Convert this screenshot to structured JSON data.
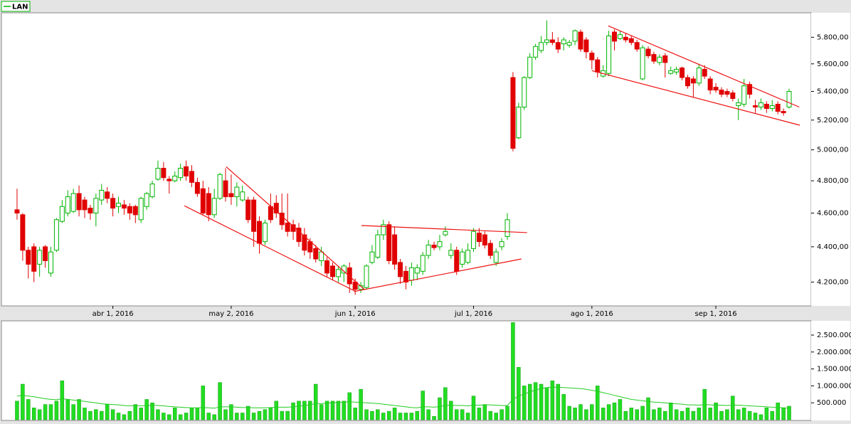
{
  "chart_data": {
    "type": "candlestick",
    "log_scale": true,
    "categories": [
      null,
      null,
      null,
      null,
      null,
      null,
      null,
      null,
      null,
      null,
      null,
      null,
      null,
      null,
      null,
      null,
      null,
      "abr 1, 2016",
      null,
      null,
      null,
      null,
      null,
      null,
      null,
      null,
      null,
      null,
      null,
      null,
      null,
      null,
      null,
      null,
      null,
      null,
      null,
      null,
      "may 2, 2016",
      null,
      null,
      null,
      null,
      null,
      null,
      null,
      null,
      null,
      null,
      null,
      null,
      null,
      null,
      null,
      null,
      null,
      null,
      null,
      null,
      null,
      "jun 1, 2016",
      null,
      null,
      null,
      null,
      null,
      null,
      null,
      null,
      null,
      null,
      null,
      null,
      null,
      null,
      null,
      null,
      null,
      null,
      null,
      null,
      "jul 1, 2016",
      null,
      null,
      null,
      null,
      null,
      null,
      null,
      null,
      null,
      null,
      null,
      null,
      null,
      null,
      null,
      null,
      null,
      null,
      null,
      null,
      "ago 1, 2016",
      null,
      null,
      null,
      null,
      null,
      null,
      null,
      null,
      null,
      null,
      null,
      null,
      null,
      null,
      null,
      null,
      null,
      null,
      null,
      null,
      null,
      "sep 1, 2016",
      null,
      null,
      null,
      null,
      null,
      null,
      null,
      null,
      null,
      null,
      null,
      null,
      null
    ],
    "series": [
      {
        "name": "LAN",
        "color": "#00b400",
        "down_color": "#e00000",
        "open": [
          4620,
          4590,
          4380,
          4400,
          4300,
          4400,
          4250,
          4380,
          4550,
          4600,
          4610,
          4720,
          4680,
          4630,
          4600,
          4680,
          4730,
          4690,
          4640,
          4650,
          4640,
          4640,
          4560,
          4640,
          4700,
          4810,
          4880,
          4810,
          4800,
          4820,
          4890,
          4860,
          4790,
          4750,
          4720,
          4590,
          4690,
          4800,
          4720,
          4700,
          4680,
          4680,
          4680,
          4550,
          4430,
          4640,
          4660,
          4600,
          4540,
          4530,
          4510,
          4470,
          4430,
          4390,
          4320,
          4320,
          4290,
          4230,
          4250,
          4280,
          4200,
          4160,
          4170,
          4310,
          4340,
          4470,
          4530,
          4470,
          4310,
          4260,
          4210,
          4250,
          4260,
          4350,
          4410,
          4400,
          4470,
          4350,
          4380,
          4300,
          4310,
          4390,
          4480,
          4470,
          4420,
          4310,
          4400,
          4460,
          5500,
          5080,
          5290,
          5500,
          5650,
          5700,
          5760,
          5780,
          5760,
          5750,
          5740,
          5770,
          5840,
          5780,
          5680,
          5630,
          5510,
          5530,
          5840,
          5790,
          5800,
          5790,
          5760,
          5490,
          5710,
          5670,
          5610,
          5660,
          5530,
          5540,
          5570,
          5500,
          5490,
          5460,
          5560,
          5490,
          5430,
          5410,
          5400,
          5390,
          5300,
          5310,
          5450,
          5300,
          5290,
          5310,
          5280,
          5310,
          5260,
          5290
        ],
        "high": [
          4750,
          4600,
          4400,
          4420,
          4400,
          4410,
          4400,
          4570,
          4680,
          4740,
          4750,
          4770,
          4700,
          4650,
          4720,
          4780,
          4760,
          4720,
          4700,
          4680,
          4660,
          4650,
          4700,
          4730,
          4800,
          4930,
          4920,
          4830,
          4860,
          4910,
          4930,
          4900,
          4820,
          4800,
          4760,
          4750,
          4850,
          4880,
          4840,
          4790,
          4770,
          4700,
          4700,
          4580,
          4560,
          4720,
          4710,
          4720,
          4720,
          4560,
          4540,
          4510,
          4450,
          4410,
          4400,
          4340,
          4310,
          4290,
          4300,
          4310,
          4220,
          4200,
          4300,
          4410,
          4500,
          4560,
          4550,
          4520,
          4330,
          4290,
          4310,
          4300,
          4370,
          4440,
          4430,
          4470,
          4520,
          4420,
          4400,
          4390,
          4420,
          4510,
          4510,
          4490,
          4440,
          4390,
          4450,
          4600,
          5540,
          5320,
          5510,
          5680,
          5750,
          5810,
          5930,
          5840,
          5800,
          5800,
          5780,
          5860,
          5860,
          5800,
          5700,
          5650,
          5590,
          5850,
          5860,
          5850,
          5830,
          5810,
          5780,
          5740,
          5730,
          5690,
          5670,
          5680,
          5580,
          5580,
          5580,
          5520,
          5510,
          5600,
          5590,
          5510,
          5460,
          5430,
          5420,
          5410,
          5350,
          5490,
          5470,
          5340,
          5350,
          5330,
          5340,
          5330,
          5280,
          5420
        ],
        "low": [
          4560,
          4320,
          4220,
          4200,
          4230,
          4280,
          4230,
          4370,
          4540,
          4580,
          4600,
          4580,
          4570,
          4560,
          4520,
          4650,
          4660,
          4580,
          4600,
          4590,
          4560,
          4540,
          4540,
          4620,
          4690,
          4800,
          4800,
          4720,
          4790,
          4800,
          4800,
          4760,
          4700,
          4590,
          4550,
          4570,
          4680,
          4670,
          4650,
          4640,
          4670,
          4540,
          4400,
          4360,
          4410,
          4540,
          4570,
          4500,
          4460,
          4440,
          4400,
          4350,
          4330,
          4310,
          4290,
          4230,
          4210,
          4200,
          4200,
          4140,
          4130,
          4140,
          4160,
          4300,
          4330,
          4440,
          4300,
          4270,
          4190,
          4160,
          4180,
          4210,
          4240,
          4330,
          4380,
          4380,
          4460,
          4330,
          4240,
          4280,
          4300,
          4370,
          4400,
          4390,
          4330,
          4290,
          4380,
          4440,
          4990,
          5070,
          5270,
          5490,
          5630,
          5680,
          5740,
          5740,
          5680,
          5700,
          5720,
          5740,
          5690,
          5640,
          5560,
          5500,
          5500,
          5510,
          5700,
          5780,
          5760,
          5740,
          5690,
          5480,
          5640,
          5600,
          5590,
          5500,
          5520,
          5520,
          5480,
          5420,
          5360,
          5440,
          5490,
          5380,
          5390,
          5360,
          5360,
          5330,
          5200,
          5290,
          5350,
          5250,
          5270,
          5250,
          5260,
          5240,
          5230,
          5280
        ],
        "close": [
          4600,
          4380,
          4300,
          4260,
          4380,
          4320,
          4370,
          4560,
          4640,
          4700,
          4720,
          4620,
          4620,
          4600,
          4690,
          4740,
          4690,
          4630,
          4660,
          4630,
          4600,
          4590,
          4690,
          4720,
          4780,
          4880,
          4820,
          4800,
          4830,
          4880,
          4830,
          4790,
          4720,
          4600,
          4590,
          4690,
          4840,
          4700,
          4700,
          4760,
          4730,
          4560,
          4490,
          4420,
          4540,
          4560,
          4600,
          4530,
          4490,
          4490,
          4430,
          4380,
          4370,
          4330,
          4370,
          4250,
          4230,
          4270,
          4290,
          4190,
          4160,
          4180,
          4290,
          4370,
          4470,
          4530,
          4320,
          4300,
          4230,
          4200,
          4280,
          4280,
          4350,
          4410,
          4395,
          4430,
          4490,
          4380,
          4260,
          4370,
          4380,
          4490,
          4430,
          4410,
          4350,
          4370,
          4430,
          4560,
          5010,
          5290,
          5500,
          5650,
          5730,
          5760,
          5780,
          5760,
          5710,
          5780,
          5760,
          5850,
          5710,
          5690,
          5630,
          5540,
          5550,
          5810,
          5770,
          5820,
          5780,
          5760,
          5710,
          5720,
          5660,
          5620,
          5650,
          5610,
          5550,
          5560,
          5500,
          5440,
          5460,
          5570,
          5510,
          5410,
          5410,
          5380,
          5380,
          5350,
          5320,
          5440,
          5380,
          5290,
          5320,
          5280,
          5300,
          5260,
          5250,
          5400
        ]
      }
    ],
    "ylim": [
      4070,
      5990
    ],
    "yticks": [
      {
        "value": 4200,
        "label": "4.200,00"
      },
      {
        "value": 4400,
        "label": "4.400,00"
      },
      {
        "value": 4600,
        "label": "4.600,00"
      },
      {
        "value": 4800,
        "label": "4.800,00"
      },
      {
        "value": 5000,
        "label": "5.000,00"
      },
      {
        "value": 5200,
        "label": "5.200,00"
      },
      {
        "value": 5400,
        "label": "5.400,00"
      },
      {
        "value": 5600,
        "label": "5.600,00"
      },
      {
        "value": 5800,
        "label": "5.800,00"
      }
    ],
    "trend_lines": [
      {
        "color": "#ee1111",
        "x": [
          29.7,
          60.1
        ],
        "y": [
          4644,
          4148
        ]
      },
      {
        "color": "#ee1111",
        "x": [
          37.1,
          61.6
        ],
        "y": [
          4890,
          4160
        ]
      },
      {
        "color": "#ee1111",
        "x": [
          59.8,
          89.5
        ],
        "y": [
          4148,
          4330
        ]
      },
      {
        "color": "#ee1111",
        "x": [
          61.1,
          90.5
        ],
        "y": [
          4525,
          4483
        ]
      },
      {
        "color": "#ee1111",
        "x": [
          104.9,
          138.8
        ],
        "y": [
          5888,
          5290
        ]
      },
      {
        "color": "#ee1111",
        "x": [
          102,
          138.9
        ],
        "y": [
          5550,
          5165
        ]
      }
    ],
    "volume": {
      "type": "bar",
      "color": "#22dd22",
      "ma_color": "#22cc22",
      "values": [
        550000,
        1050000,
        600000,
        350000,
        300000,
        450000,
        450000,
        550000,
        1150000,
        600000,
        450000,
        600000,
        350000,
        250000,
        300000,
        250000,
        450000,
        300000,
        200000,
        150000,
        250000,
        450000,
        350000,
        600000,
        500000,
        300000,
        200000,
        150000,
        350000,
        150000,
        200000,
        350000,
        350000,
        1000000,
        200000,
        150000,
        1100000,
        300000,
        450000,
        200000,
        200000,
        400000,
        200000,
        250000,
        300000,
        350000,
        550000,
        250000,
        250000,
        500000,
        550000,
        550000,
        550000,
        1050000,
        450000,
        550000,
        550000,
        550000,
        550000,
        800000,
        350000,
        900000,
        300000,
        250000,
        300000,
        200000,
        250000,
        350000,
        200000,
        200000,
        200000,
        250000,
        850000,
        300000,
        100000,
        650000,
        950000,
        550000,
        300000,
        300000,
        200000,
        700000,
        350000,
        450000,
        250000,
        200000,
        300000,
        400000,
        2870000,
        1550000,
        1000000,
        1050000,
        1100000,
        1050000,
        950000,
        1150000,
        1050000,
        750000,
        400000,
        350000,
        450000,
        300000,
        450000,
        1000000,
        350000,
        450000,
        500000,
        600000,
        250000,
        350000,
        300000,
        400000,
        650000,
        300000,
        350000,
        250000,
        500000,
        300000,
        250000,
        350000,
        250000,
        350000,
        900000,
        350000,
        500000,
        250000,
        300000,
        700000,
        300000,
        350000,
        250000,
        200000,
        150000,
        350000,
        250000,
        500000,
        350000,
        400000
      ],
      "ma": [
        700000,
        720000,
        700000,
        680000,
        650000,
        620000,
        600000,
        590000,
        620000,
        600000,
        580000,
        560000,
        540000,
        520000,
        500000,
        470000,
        460000,
        450000,
        440000,
        420000,
        410000,
        420000,
        410000,
        420000,
        430000,
        420000,
        410000,
        390000,
        380000,
        370000,
        360000,
        350000,
        350000,
        360000,
        350000,
        340000,
        380000,
        380000,
        380000,
        370000,
        360000,
        360000,
        350000,
        350000,
        350000,
        360000,
        370000,
        370000,
        370000,
        380000,
        400000,
        420000,
        440000,
        480000,
        480000,
        490000,
        500000,
        510000,
        520000,
        530000,
        520000,
        510000,
        500000,
        490000,
        480000,
        460000,
        440000,
        420000,
        400000,
        380000,
        360000,
        350000,
        380000,
        380000,
        370000,
        390000,
        420000,
        430000,
        420000,
        420000,
        410000,
        430000,
        430000,
        440000,
        440000,
        430000,
        420000,
        420000,
        600000,
        700000,
        760000,
        820000,
        880000,
        920000,
        950000,
        960000,
        960000,
        950000,
        940000,
        930000,
        920000,
        900000,
        870000,
        840000,
        800000,
        760000,
        720000,
        680000,
        640000,
        600000,
        580000,
        560000,
        540000,
        520000,
        510000,
        500000,
        480000,
        470000,
        460000,
        440000,
        440000,
        430000,
        450000,
        440000,
        430000,
        430000,
        420000,
        430000,
        430000,
        420000,
        410000,
        400000,
        390000,
        380000,
        370000,
        360000,
        350000,
        340000
      ],
      "ylim": [
        0,
        2920000
      ],
      "yticks": [
        {
          "value": 500000,
          "label": "500.000"
        },
        {
          "value": 1000000,
          "label": "1.000.000"
        },
        {
          "value": 1500000,
          "label": "1.500.000"
        },
        {
          "value": 2000000,
          "label": "2.000.000"
        },
        {
          "value": 2500000,
          "label": "2.500.000"
        }
      ]
    }
  }
}
